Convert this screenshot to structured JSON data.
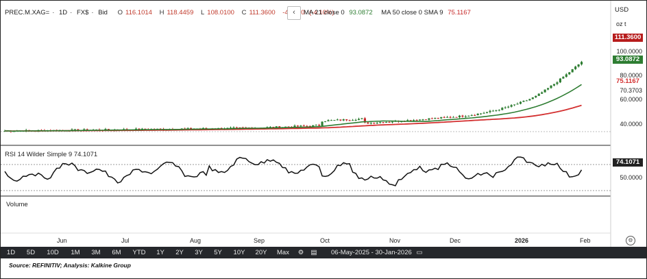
{
  "header": {
    "symbol": "PREC.M.XAG=",
    "interval": "1D",
    "currency": "FX$",
    "side": "Bid",
    "o_label": "O",
    "o_value": "116.1014",
    "h_label": "H",
    "h_value": "118.4459",
    "l_label": "L",
    "l_value": "108.0100",
    "c_label": "C",
    "c_value": "111.3600",
    "change": "-4.7570",
    "change_pct": "(-4.10%)",
    "collapse_icon": "chevron-left-icon"
  },
  "indicators": {
    "ma21_label": "MA 21 close 0",
    "ma21_value": "93.0872",
    "ma50_label": "MA 50 close 0 SMA 9",
    "ma50_value": "75.1167"
  },
  "price_axis": {
    "currency": "USD",
    "unit": "oz t",
    "ticks": [
      "100.0000",
      "80.0000",
      "70.3703",
      "60.0000",
      "40.0000"
    ],
    "last_price_tag": "111.3600",
    "ma21_tag": "93.0872",
    "ma50_tag": "75.1167"
  },
  "rsi": {
    "title": "RSI 14 Wilder Simple 9",
    "value": "74.1071",
    "tick": "50.0000",
    "tag": "74.1071"
  },
  "volume": {
    "title": "Volume"
  },
  "months": [
    "Jun",
    "Jul",
    "Aug",
    "Sep",
    "Oct",
    "Nov",
    "Dec",
    "2026",
    "Feb"
  ],
  "toolbar": {
    "ranges": [
      "1D",
      "5D",
      "10D",
      "1M",
      "3M",
      "6M",
      "YTD",
      "1Y",
      "2Y",
      "3Y",
      "5Y",
      "10Y",
      "20Y",
      "Max"
    ],
    "settings_icon": "gear-icon",
    "table_icon": "table-icon",
    "date_start": "06-May-2025",
    "date_sep": "-",
    "date_end": "30-Jan-2026",
    "calendar_icon": "calendar-icon"
  },
  "settings_corner_icon": "settings-icon",
  "source": "Source: REFINITIV; Analysis: Kalkine Group",
  "colors": {
    "up_candle": "#2e7d32",
    "down_candle": "#c62828",
    "ma21": "#2e7d32",
    "ma50": "#d32f2f",
    "last_tag": "#b71c1c",
    "rsi_line": "#111111",
    "toolbar_bg": "#25272b"
  }
}
